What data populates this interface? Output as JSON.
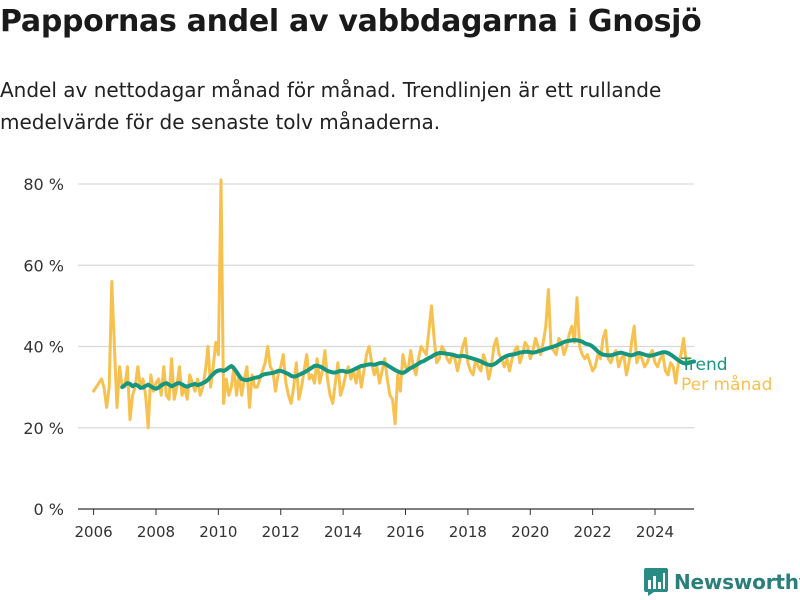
{
  "header": {
    "title": "Pappornas andel av vabbdagarna i Gnosjö",
    "subtitle": "Andel av nettodagar månad för månad. Trendlinjen är ett rullande medelvärde för de senaste tolv månaderna."
  },
  "brand": {
    "name": "Newsworthy",
    "color": "#2a8a84",
    "icon": "bar-chart-logo-icon"
  },
  "chart_data": {
    "type": "line",
    "title": "",
    "xlabel": "",
    "ylabel": "",
    "xlim": [
      2005.5,
      2025.25
    ],
    "ylim": [
      0,
      80
    ],
    "y_ticks": [
      0,
      20,
      40,
      60,
      80
    ],
    "y_tick_labels": [
      "0 %",
      "20 %",
      "40 %",
      "60 %",
      "80 %"
    ],
    "x_ticks": [
      2006,
      2008,
      2010,
      2012,
      2014,
      2016,
      2018,
      2020,
      2022,
      2024
    ],
    "x_tick_labels": [
      "2006",
      "2008",
      "2010",
      "2012",
      "2014",
      "2016",
      "2018",
      "2020",
      "2022",
      "2024"
    ],
    "grid": "horizontal",
    "legend": "right-end labels",
    "series": [
      {
        "name": "Per månad",
        "color": "#f7c14f",
        "start_year": 2006,
        "values": [
          29,
          30,
          31,
          32,
          30,
          25,
          30,
          56,
          40,
          25,
          35,
          30,
          30,
          35,
          22,
          28,
          30,
          35,
          30,
          32,
          28,
          20,
          33,
          29,
          31,
          32,
          28,
          35,
          28,
          27,
          37,
          27,
          30,
          35,
          28,
          30,
          27,
          33,
          31,
          29,
          32,
          28,
          30,
          34,
          40,
          30,
          35,
          41,
          38,
          81,
          26,
          32,
          28,
          30,
          35,
          28,
          33,
          28,
          32,
          35,
          25,
          33,
          30,
          30,
          32,
          34,
          36,
          40,
          35,
          34,
          29,
          33,
          35,
          38,
          31,
          28,
          26,
          30,
          36,
          27,
          30,
          34,
          38,
          32,
          33,
          31,
          37,
          31,
          34,
          39,
          32,
          28,
          26,
          31,
          36,
          28,
          30,
          33,
          35,
          32,
          34,
          31,
          35,
          30,
          34,
          38,
          40,
          36,
          33,
          35,
          31,
          34,
          37,
          32,
          28,
          27,
          21,
          33,
          29,
          38,
          35,
          34,
          39,
          35,
          33,
          37,
          40,
          39,
          38,
          44,
          50,
          42,
          36,
          37,
          40,
          39,
          37,
          36,
          38,
          37,
          34,
          37,
          40,
          42,
          36,
          34,
          33,
          37,
          35,
          34,
          38,
          36,
          32,
          35,
          40,
          42,
          38,
          37,
          35,
          37,
          34,
          37,
          39,
          40,
          36,
          38,
          41,
          40,
          37,
          39,
          42,
          40,
          38,
          41,
          45,
          54,
          40,
          39,
          38,
          42,
          41,
          38,
          40,
          43,
          45,
          41,
          52,
          40,
          38,
          37,
          38,
          36,
          34,
          35,
          38,
          37,
          42,
          44,
          37,
          36,
          38,
          39,
          35,
          37,
          38,
          33,
          36,
          41,
          45,
          36,
          38,
          37,
          35,
          36,
          38,
          39,
          36,
          35,
          37,
          38,
          34,
          33,
          36,
          35,
          31,
          36,
          38,
          42,
          36,
          37
        ]
      },
      {
        "name": "Trend",
        "color": "#16967f",
        "start_year": 2006.9167,
        "values": [
          30,
          30.5,
          31,
          30.8,
          30.2,
          30.6,
          30.4,
          29.8,
          29.9,
          30.3,
          30.6,
          30.2,
          29.8,
          29.6,
          29.9,
          30.4,
          30.8,
          31,
          30.6,
          30.2,
          30.5,
          30.9,
          31,
          30.7,
          30.3,
          30.1,
          30.4,
          30.6,
          30.8,
          30.5,
          30.7,
          31,
          31.3,
          31.8,
          32.6,
          33.2,
          33.8,
          34.1,
          34.2,
          34,
          34.3,
          34.8,
          35.2,
          34.6,
          33.8,
          32.8,
          32,
          31.8,
          31.7,
          31.9,
          32.1,
          32.3,
          32.4,
          32.6,
          33,
          33.2,
          33.3,
          33.4,
          33.5,
          33.7,
          34,
          34,
          33.8,
          33.5,
          33.2,
          32.8,
          32.6,
          32.7,
          33,
          33.3,
          33.6,
          34,
          34.4,
          34.8,
          35.2,
          35.3,
          35.1,
          34.8,
          34.4,
          34,
          33.8,
          33.6,
          33.6,
          33.8,
          34,
          34,
          33.8,
          33.8,
          34,
          34.3,
          34.6,
          34.9,
          35.2,
          35.3,
          35.5,
          35.6,
          35.6,
          35.5,
          35.7,
          35.9,
          36,
          35.8,
          35.4,
          35,
          34.6,
          34.2,
          33.9,
          33.6,
          33.5,
          33.8,
          34.3,
          34.7,
          35,
          35.4,
          35.8,
          36.2,
          36.4,
          36.8,
          37.2,
          37.5,
          37.9,
          38.2,
          38.4,
          38.4,
          38.3,
          38.2,
          38.1,
          38,
          37.8,
          37.6,
          37.6,
          37.7,
          37.6,
          37.4,
          37.2,
          37,
          36.8,
          36.6,
          36.3,
          36,
          35.7,
          35.5,
          35.4,
          35.6,
          36,
          36.5,
          37,
          37.4,
          37.7,
          37.9,
          38,
          38.1,
          38.3,
          38.5,
          38.6,
          38.7,
          38.7,
          38.6,
          38.5,
          38.6,
          38.8,
          39,
          39.2,
          39.4,
          39.6,
          39.8,
          40,
          40.2,
          40.5,
          40.8,
          41.1,
          41.3,
          41.4,
          41.5,
          41.6,
          41.5,
          41.4,
          41.2,
          40.8,
          40.6,
          40.4,
          40,
          39.4,
          38.8,
          38.3,
          38,
          37.9,
          37.8,
          37.8,
          38,
          38.2,
          38.4,
          38.5,
          38.3,
          38.1,
          37.9,
          37.8,
          38,
          38.3,
          38.4,
          38.2,
          38,
          37.8,
          37.7,
          37.8,
          38,
          38.2,
          38.4,
          38.6,
          38.6,
          38.4,
          38,
          37.6,
          37.1,
          36.6,
          36.2,
          35.9,
          35.8,
          36,
          36.2,
          36.3
        ]
      }
    ]
  }
}
